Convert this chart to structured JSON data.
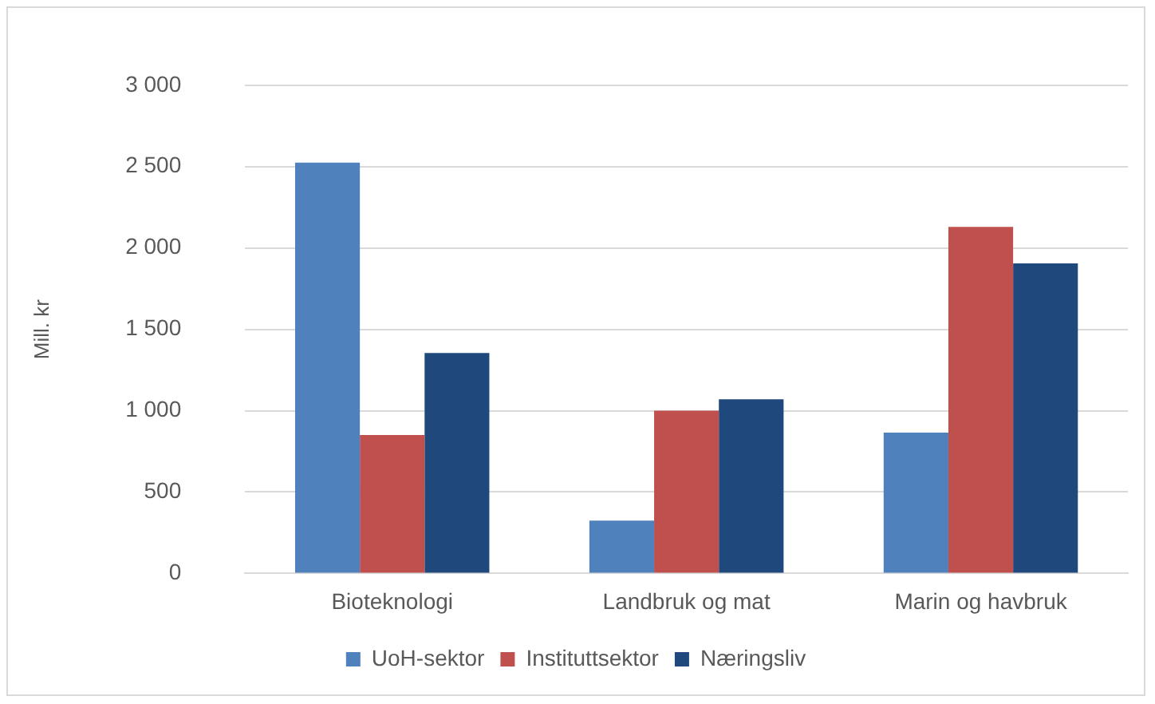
{
  "chart_data": {
    "type": "bar",
    "ylabel": "Mill. kr",
    "categories": [
      "Bioteknologi",
      "Landbruk og mat",
      "Marin og havbruk"
    ],
    "series": [
      {
        "name": "UoH-sektor",
        "color": "#4f81bd",
        "values": [
          2525,
          325,
          865
        ]
      },
      {
        "name": "Instituttsektor",
        "color": "#c0504d",
        "values": [
          850,
          1000,
          2130
        ]
      },
      {
        "name": "Næringsliv",
        "color": "#1f497d",
        "values": [
          1355,
          1070,
          1905
        ]
      }
    ],
    "ylim": [
      0,
      3000
    ],
    "yticks": [
      0,
      500,
      {
        "value": 1000,
        "label": "1 000"
      },
      {
        "value": 1500,
        "label": "1 500"
      },
      {
        "value": 2000,
        "label": "2 000"
      },
      {
        "value": 2500,
        "label": "2 500"
      },
      {
        "value": 3000,
        "label": "3 000"
      }
    ],
    "grid": "y",
    "legend": "bottom"
  }
}
